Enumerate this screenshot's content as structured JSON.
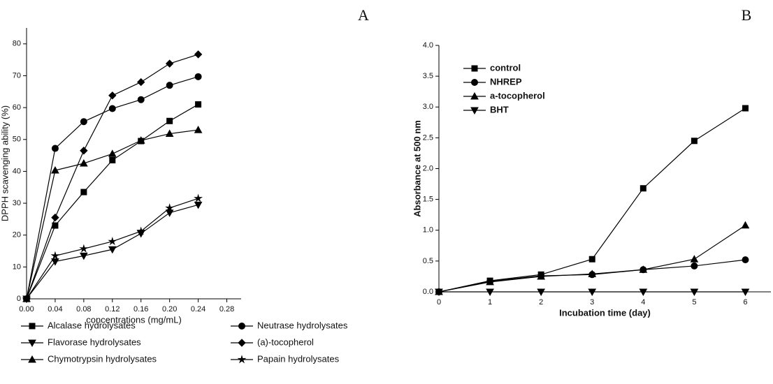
{
  "chart_data": [
    {
      "type": "line",
      "panel": "A",
      "x_label": "concentrations (mg/mL)",
      "y_label": "DPPH scavenging ability (%)",
      "x": [
        0,
        0.04,
        0.08,
        0.12,
        0.16,
        0.2,
        0.24
      ],
      "xlim": [
        0,
        0.3
      ],
      "xticks": [
        {
          "value": 0,
          "label": "0.00"
        },
        {
          "value": 0.04,
          "label": "0.04"
        },
        {
          "value": 0.08,
          "label": "0.08"
        },
        {
          "value": 0.12,
          "label": "0.12"
        },
        {
          "value": 0.16,
          "label": "0.16"
        },
        {
          "value": 0.2,
          "label": "0.20"
        },
        {
          "value": 0.24,
          "label": "0.24"
        },
        {
          "value": 0.28,
          "label": "0.28"
        }
      ],
      "ylim": [
        0,
        85
      ],
      "yticks": [
        0,
        10,
        20,
        30,
        40,
        50,
        60,
        70,
        80
      ],
      "legend": "below",
      "series": [
        {
          "name": "Alcalase hydrolysates",
          "color": "#000000",
          "marker": "square",
          "values": [
            0,
            23,
            33.5,
            43.5,
            49.5,
            55.8,
            61
          ]
        },
        {
          "name": "Neutrase hydrolysates",
          "color": "#000000",
          "marker": "circle",
          "values": [
            0,
            47.2,
            55.6,
            59.7,
            62.5,
            67,
            69.7
          ]
        },
        {
          "name": "Flavorase hydrolysates",
          "color": "#000000",
          "marker": "triangle-down",
          "values": [
            0,
            11.7,
            13.5,
            15.5,
            20.5,
            27,
            29.5
          ]
        },
        {
          "name": "(a)-tocopherol",
          "color": "#000000",
          "marker": "diamond",
          "values": [
            0,
            25.5,
            46.5,
            63.8,
            68,
            73.8,
            76.7
          ]
        },
        {
          "name": "Chymotrypsin hydrolysates",
          "color": "#000000",
          "marker": "triangle-up",
          "values": [
            0,
            40.3,
            42.5,
            45.5,
            49.7,
            51.8,
            53
          ]
        },
        {
          "name": "Papain hydrolysates",
          "color": "#000000",
          "marker": "star",
          "values": [
            0,
            13.5,
            15.7,
            18,
            21.2,
            28.5,
            31.5
          ]
        }
      ]
    },
    {
      "type": "line",
      "panel": "B",
      "x_label": "Incubation time (day)",
      "y_label": "Absorbance at 500 nm",
      "x": [
        0,
        1,
        2,
        3,
        4,
        5,
        6
      ],
      "xlim": [
        0,
        6.5
      ],
      "xticks": [
        0,
        1,
        2,
        3,
        4,
        5,
        6
      ],
      "ylim": [
        0,
        4
      ],
      "yticks": [
        {
          "value": 0,
          "label": "0.0"
        },
        {
          "value": 0.5,
          "label": "0.5"
        },
        {
          "value": 1,
          "label": "1.0"
        },
        {
          "value": 1.5,
          "label": "1.5"
        },
        {
          "value": 2,
          "label": "2.0"
        },
        {
          "value": 2.5,
          "label": "2.5"
        },
        {
          "value": 3,
          "label": "3.0"
        },
        {
          "value": 3.5,
          "label": "3.5"
        },
        {
          "value": 4,
          "label": "4.0"
        }
      ],
      "legend": "upper left",
      "series": [
        {
          "name": "control",
          "color": "#000000",
          "marker": "square",
          "values": [
            0,
            0.18,
            0.28,
            0.53,
            1.68,
            2.45,
            2.98
          ]
        },
        {
          "name": "NHREP",
          "color": "#000000",
          "marker": "circle",
          "values": [
            0,
            0.17,
            0.26,
            0.28,
            0.36,
            0.42,
            0.52
          ]
        },
        {
          "name": "a-tocopherol",
          "color": "#000000",
          "marker": "triangle-up",
          "values": [
            0,
            0.16,
            0.25,
            0.29,
            0.36,
            0.53,
            1.08
          ]
        },
        {
          "name": "BHT",
          "color": "#000000",
          "marker": "triangle-down",
          "values": [
            0,
            0,
            0,
            0,
            0,
            0,
            0
          ]
        }
      ]
    }
  ]
}
